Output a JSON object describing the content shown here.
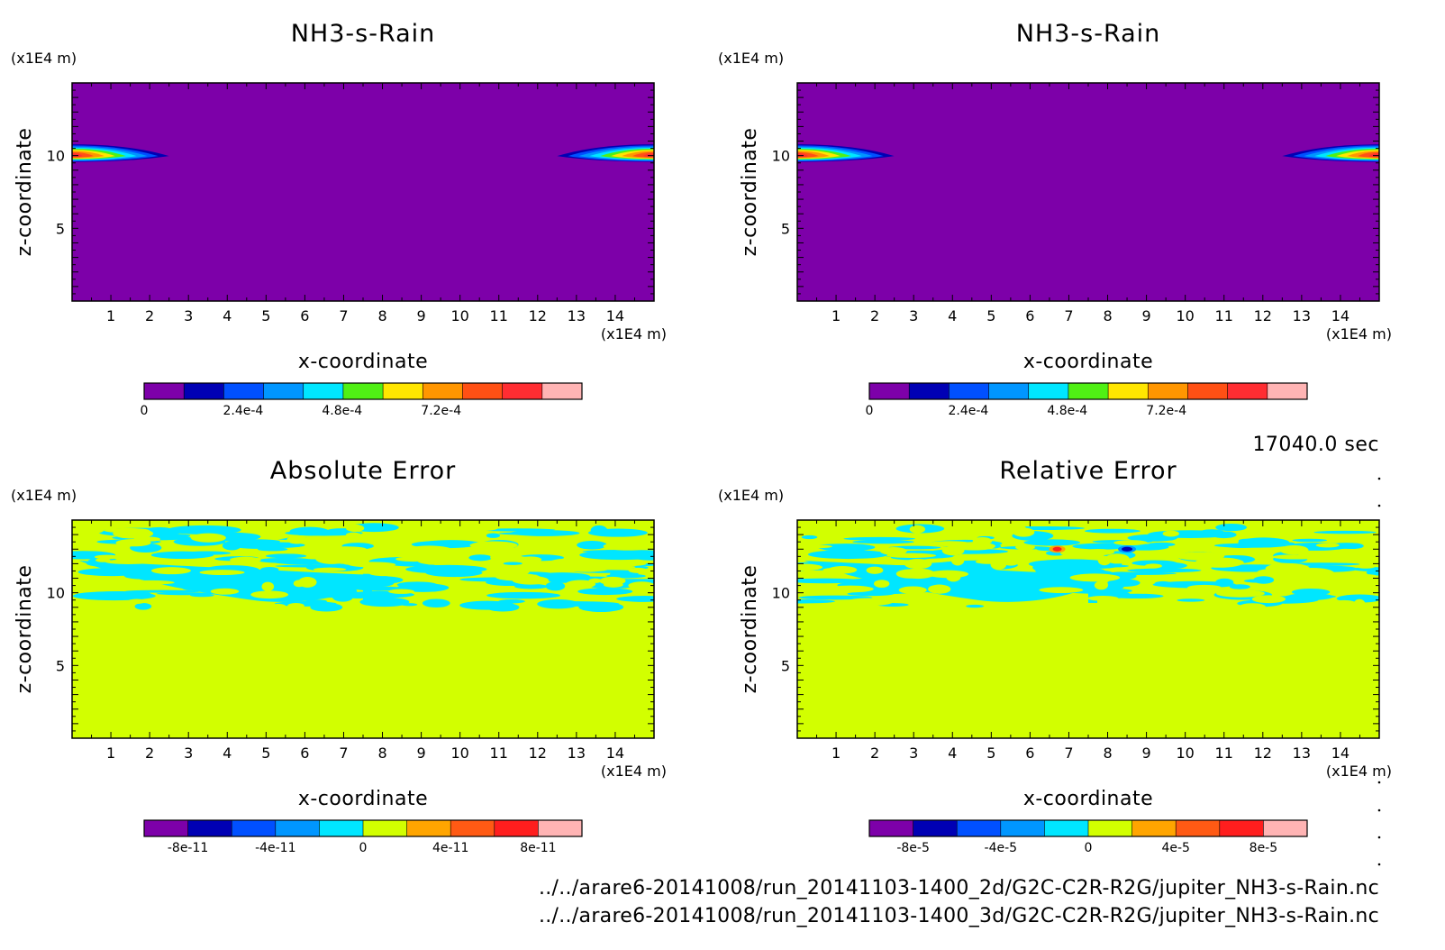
{
  "chart_data": [
    {
      "type": "heatmap",
      "title": "NH3-s-Rain",
      "xlabel": "x-coordinate",
      "ylabel": "z-coordinate",
      "x_unit": "(x1E4 m)",
      "y_unit": "(x1E4 m)",
      "xlim": [
        0,
        15
      ],
      "ylim": [
        0,
        15
      ],
      "xticks": [
        "1",
        "2",
        "3",
        "4",
        "5",
        "6",
        "7",
        "8",
        "9",
        "10",
        "11",
        "12",
        "13",
        "14"
      ],
      "yticks": [
        "5",
        "10"
      ],
      "background_color": "#7d00a9",
      "colorbar": {
        "colors": [
          "#7d00a9",
          "#0000b4",
          "#0050ff",
          "#0096ff",
          "#00e6ff",
          "#50f014",
          "#ffe600",
          "#ff9600",
          "#ff5014",
          "#ff2d32",
          "#ffb4b4"
        ],
        "tick_labels": [
          "0",
          "2.4e-4",
          "4.8e-4",
          "7.2e-4"
        ],
        "tick_values": [
          0,
          0.00024,
          0.00048,
          0.00072
        ],
        "vmin": 0,
        "vmax": 0.00096
      },
      "features": [
        {
          "shape": "lens",
          "x_range": [
            0,
            2.5
          ],
          "z_center": 10,
          "peak": 0.00096
        },
        {
          "shape": "lens",
          "x_range": [
            12.5,
            15
          ],
          "z_center": 10,
          "peak": 0.00096
        }
      ]
    },
    {
      "type": "heatmap",
      "title": "NH3-s-Rain",
      "xlabel": "x-coordinate",
      "ylabel": "z-coordinate",
      "x_unit": "(x1E4 m)",
      "y_unit": "(x1E4 m)",
      "xlim": [
        0,
        15
      ],
      "ylim": [
        0,
        15
      ],
      "xticks": [
        "1",
        "2",
        "3",
        "4",
        "5",
        "6",
        "7",
        "8",
        "9",
        "10",
        "11",
        "12",
        "13",
        "14"
      ],
      "yticks": [
        "5",
        "10"
      ],
      "background_color": "#7d00a9",
      "colorbar": {
        "colors": [
          "#7d00a9",
          "#0000b4",
          "#0050ff",
          "#0096ff",
          "#00e6ff",
          "#50f014",
          "#ffe600",
          "#ff9600",
          "#ff5014",
          "#ff2d32",
          "#ffb4b4"
        ],
        "tick_labels": [
          "0",
          "2.4e-4",
          "4.8e-4",
          "7.2e-4"
        ],
        "tick_values": [
          0,
          0.00024,
          0.00048,
          0.00072
        ],
        "vmin": 0,
        "vmax": 0.00096
      },
      "features": [
        {
          "shape": "lens",
          "x_range": [
            0,
            2.5
          ],
          "z_center": 10,
          "peak": 0.00096
        },
        {
          "shape": "lens",
          "x_range": [
            12.5,
            15
          ],
          "z_center": 10,
          "peak": 0.00096
        }
      ]
    },
    {
      "type": "heatmap",
      "title": "Absolute Error",
      "xlabel": "x-coordinate",
      "ylabel": "z-coordinate",
      "x_unit": "(x1E4 m)",
      "y_unit": "(x1E4 m)",
      "xlim": [
        0,
        15
      ],
      "ylim": [
        0,
        15
      ],
      "xticks": [
        "1",
        "2",
        "3",
        "4",
        "5",
        "6",
        "7",
        "8",
        "9",
        "10",
        "11",
        "12",
        "13",
        "14"
      ],
      "yticks": [
        "5",
        "10"
      ],
      "background_color": "#d2ff00",
      "colorbar": {
        "colors": [
          "#7d00a9",
          "#0000b4",
          "#0050ff",
          "#0096ff",
          "#00e6ff",
          "#d2ff00",
          "#ffa500",
          "#ff5a14",
          "#ff1e1e",
          "#ffb4b4"
        ],
        "tick_labels": [
          "-8e-11",
          "-4e-11",
          "0",
          "4e-11",
          "8e-11"
        ],
        "tick_values": [
          -8e-11,
          -4e-11,
          0,
          4e-11,
          8e-11
        ],
        "vmin": -1e-10,
        "vmax": 1e-10
      },
      "features": [
        {
          "shape": "noise-band",
          "z_range": [
            9,
            14.5
          ],
          "value_sign": "negative-small"
        }
      ]
    },
    {
      "type": "heatmap",
      "title": "Relative Error",
      "xlabel": "x-coordinate",
      "ylabel": "z-coordinate",
      "x_unit": "(x1E4 m)",
      "y_unit": "(x1E4 m)",
      "xlim": [
        0,
        15
      ],
      "ylim": [
        0,
        15
      ],
      "xticks": [
        "1",
        "2",
        "3",
        "4",
        "5",
        "6",
        "7",
        "8",
        "9",
        "10",
        "11",
        "12",
        "13",
        "14"
      ],
      "yticks": [
        "5",
        "10"
      ],
      "background_color": "#d2ff00",
      "colorbar": {
        "colors": [
          "#7d00a9",
          "#0000b4",
          "#0050ff",
          "#0096ff",
          "#00e6ff",
          "#d2ff00",
          "#ffa500",
          "#ff5a14",
          "#ff1e1e",
          "#ffb4b4"
        ],
        "tick_labels": [
          "-8e-5",
          "-4e-5",
          "0",
          "4e-5",
          "8e-5"
        ],
        "tick_values": [
          -8e-05,
          -4e-05,
          0,
          4e-05,
          8e-05
        ],
        "vmin": -0.0001,
        "vmax": 0.0001
      },
      "features": [
        {
          "shape": "noise-band",
          "z_range": [
            9,
            14.5
          ],
          "value_sign": "negative-small"
        },
        {
          "shape": "spot",
          "x": 6.7,
          "z": 13.0,
          "value": 8e-05
        },
        {
          "shape": "spot",
          "x": 8.5,
          "z": 13.0,
          "value": -8e-05
        }
      ]
    }
  ],
  "time_label": "17040.0 sec",
  "files": [
    "../../arare6-20141008/run_20141103-1400_2d/G2C-C2R-R2G/jupiter_NH3-s-Rain.nc",
    "../../arare6-20141008/run_20141103-1400_3d/G2C-C2R-R2G/jupiter_NH3-s-Rain.nc"
  ]
}
